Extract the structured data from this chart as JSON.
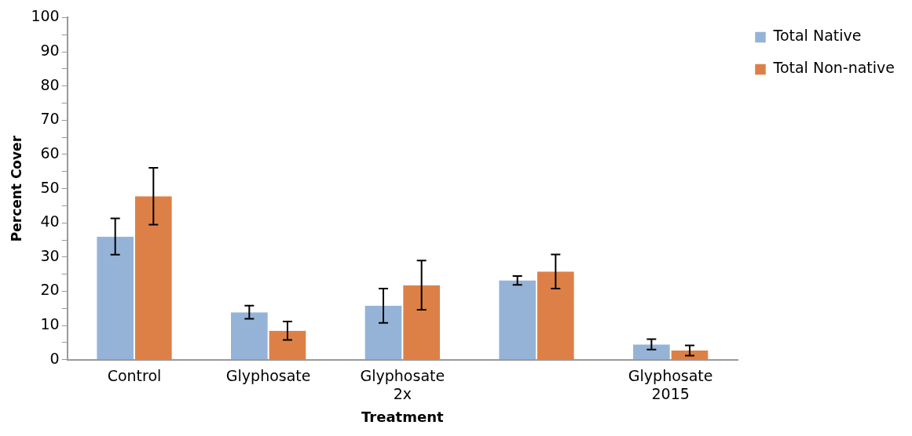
{
  "chart_data": {
    "type": "bar",
    "xlabel": "Treatment",
    "ylabel": "Percent Cover",
    "categories": [
      "Control",
      "Glyphosate",
      "Glyphosate 2x",
      null,
      "Glyphosate 2015"
    ],
    "series": [
      {
        "name": "Total Native",
        "color": "#95b3d7",
        "values": [
          36,
          13.9,
          15.8,
          23.2,
          4.5
        ],
        "errors": [
          5.3,
          1.9,
          5,
          1.3,
          1.5
        ]
      },
      {
        "name": "Total Non-native",
        "color": "#dd8047",
        "values": [
          47.8,
          8.5,
          21.8,
          25.8,
          2.7
        ],
        "errors": [
          8.3,
          2.7,
          7.2,
          5,
          1.5
        ]
      }
    ],
    "ylim": [
      0,
      100
    ],
    "yticks": [
      0,
      {
        "value": 5,
        "label": null
      },
      10,
      {
        "value": 15,
        "label": null
      },
      20,
      {
        "value": 25,
        "label": null
      },
      30,
      {
        "value": 35,
        "label": null
      },
      40,
      {
        "value": 45,
        "label": null
      },
      50,
      {
        "value": 55,
        "label": null
      },
      60,
      {
        "value": 65,
        "label": null
      },
      70,
      {
        "value": 75,
        "label": null
      },
      80,
      {
        "value": 85,
        "label": null
      },
      90,
      {
        "value": 95,
        "label": null
      },
      100
    ],
    "grid": false,
    "legend": "right"
  }
}
